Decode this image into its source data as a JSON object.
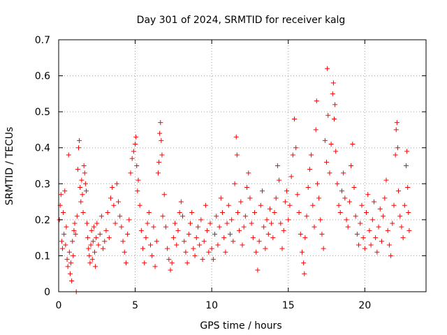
{
  "chart_data": {
    "type": "scatter",
    "title": "Day 301 of 2024, SRMTID for receiver kalg",
    "xlabel": "GPS time / hours",
    "ylabel": "SRMTID / TECUs",
    "xlim": [
      0,
      24
    ],
    "ylim": [
      0,
      0.7
    ],
    "xticks": [
      0,
      5,
      10,
      15,
      20
    ],
    "yticks": [
      0,
      0.1,
      0.2,
      0.3,
      0.4,
      0.5,
      0.6,
      0.7
    ],
    "grid": true,
    "marker": "+",
    "color": "#ff0000",
    "series": [
      {
        "name": "SRMTID",
        "points": [
          [
            0.05,
            0.2
          ],
          [
            0.1,
            0.24
          ],
          [
            0.15,
            0.27
          ],
          [
            0.2,
            0.14
          ],
          [
            0.25,
            0.12
          ],
          [
            0.3,
            0.22
          ],
          [
            0.35,
            0.16
          ],
          [
            0.4,
            0.28
          ],
          [
            0.45,
            0.13
          ],
          [
            0.5,
            0.18
          ],
          [
            0.55,
            0.09
          ],
          [
            0.6,
            0.07
          ],
          [
            0.65,
            0.38
          ],
          [
            0.7,
            0.11
          ],
          [
            0.75,
            0.05
          ],
          [
            0.8,
            0.08
          ],
          [
            0.85,
            0.03
          ],
          [
            0.9,
            0.14
          ],
          [
            0.95,
            0.1
          ],
          [
            1.0,
            0.17
          ],
          [
            1.05,
            0.19
          ],
          [
            1.1,
            0.16
          ],
          [
            1.15,
            0.0
          ],
          [
            1.2,
            0.21
          ],
          [
            1.25,
            0.34
          ],
          [
            1.3,
            0.4
          ],
          [
            1.35,
            0.42
          ],
          [
            1.4,
            0.29
          ],
          [
            1.45,
            0.25
          ],
          [
            1.5,
            0.31
          ],
          [
            1.55,
            0.27
          ],
          [
            1.6,
            0.22
          ],
          [
            1.65,
            0.35
          ],
          [
            1.7,
            0.33
          ],
          [
            1.75,
            0.3
          ],
          [
            1.8,
            0.28
          ],
          [
            1.85,
            0.19
          ],
          [
            1.9,
            0.15
          ],
          [
            1.95,
            0.12
          ],
          [
            2.0,
            0.1
          ],
          [
            2.05,
            0.08
          ],
          [
            2.1,
            0.13
          ],
          [
            2.15,
            0.17
          ],
          [
            2.2,
            0.09
          ],
          [
            2.25,
            0.14
          ],
          [
            2.3,
            0.18
          ],
          [
            2.35,
            0.11
          ],
          [
            2.4,
            0.07
          ],
          [
            2.45,
            0.15
          ],
          [
            2.5,
            0.19
          ],
          [
            2.6,
            0.13
          ],
          [
            2.7,
            0.16
          ],
          [
            2.8,
            0.21
          ],
          [
            2.9,
            0.12
          ],
          [
            3.0,
            0.14
          ],
          [
            3.1,
            0.17
          ],
          [
            3.2,
            0.22
          ],
          [
            3.3,
            0.15
          ],
          [
            3.4,
            0.26
          ],
          [
            3.5,
            0.29
          ],
          [
            3.6,
            0.24
          ],
          [
            3.7,
            0.19
          ],
          [
            3.8,
            0.3
          ],
          [
            3.9,
            0.25
          ],
          [
            4.0,
            0.21
          ],
          [
            4.1,
            0.18
          ],
          [
            4.2,
            0.14
          ],
          [
            4.3,
            0.11
          ],
          [
            4.4,
            0.08
          ],
          [
            4.5,
            0.16
          ],
          [
            4.6,
            0.2
          ],
          [
            4.7,
            0.33
          ],
          [
            4.8,
            0.37
          ],
          [
            4.9,
            0.39
          ],
          [
            5.0,
            0.41
          ],
          [
            5.05,
            0.43
          ],
          [
            5.1,
            0.35
          ],
          [
            5.15,
            0.28
          ],
          [
            5.2,
            0.31
          ],
          [
            5.3,
            0.24
          ],
          [
            5.4,
            0.17
          ],
          [
            5.5,
            0.12
          ],
          [
            5.6,
            0.08
          ],
          [
            5.7,
            0.15
          ],
          [
            5.8,
            0.19
          ],
          [
            5.9,
            0.22
          ],
          [
            6.0,
            0.13
          ],
          [
            6.1,
            0.1
          ],
          [
            6.2,
            0.18
          ],
          [
            6.3,
            0.07
          ],
          [
            6.4,
            0.14
          ],
          [
            6.5,
            0.33
          ],
          [
            6.55,
            0.36
          ],
          [
            6.6,
            0.44
          ],
          [
            6.65,
            0.47
          ],
          [
            6.7,
            0.42
          ],
          [
            6.75,
            0.38
          ],
          [
            6.8,
            0.21
          ],
          [
            6.9,
            0.27
          ],
          [
            7.0,
            0.18
          ],
          [
            7.1,
            0.12
          ],
          [
            7.2,
            0.09
          ],
          [
            7.3,
            0.06
          ],
          [
            7.4,
            0.08
          ],
          [
            7.5,
            0.15
          ],
          [
            7.6,
            0.19
          ],
          [
            7.7,
            0.13
          ],
          [
            7.8,
            0.17
          ],
          [
            7.9,
            0.22
          ],
          [
            8.0,
            0.25
          ],
          [
            8.1,
            0.21
          ],
          [
            8.2,
            0.14
          ],
          [
            8.3,
            0.11
          ],
          [
            8.4,
            0.08
          ],
          [
            8.5,
            0.16
          ],
          [
            8.6,
            0.19
          ],
          [
            8.7,
            0.22
          ],
          [
            8.8,
            0.12
          ],
          [
            8.9,
            0.1
          ],
          [
            9.0,
            0.15
          ],
          [
            9.1,
            0.18
          ],
          [
            9.2,
            0.13
          ],
          [
            9.3,
            0.2
          ],
          [
            9.4,
            0.09
          ],
          [
            9.5,
            0.14
          ],
          [
            9.6,
            0.24
          ],
          [
            9.7,
            0.17
          ],
          [
            9.8,
            0.11
          ],
          [
            9.9,
            0.19
          ],
          [
            10.0,
            0.12
          ],
          [
            10.1,
            0.09
          ],
          [
            10.2,
            0.16
          ],
          [
            10.3,
            0.21
          ],
          [
            10.4,
            0.13
          ],
          [
            10.5,
            0.18
          ],
          [
            10.6,
            0.26
          ],
          [
            10.7,
            0.22
          ],
          [
            10.8,
            0.15
          ],
          [
            10.9,
            0.11
          ],
          [
            11.0,
            0.19
          ],
          [
            11.1,
            0.24
          ],
          [
            11.2,
            0.16
          ],
          [
            11.3,
            0.2
          ],
          [
            11.4,
            0.14
          ],
          [
            11.5,
            0.3
          ],
          [
            11.6,
            0.43
          ],
          [
            11.65,
            0.38
          ],
          [
            11.7,
            0.22
          ],
          [
            11.8,
            0.17
          ],
          [
            11.9,
            0.25
          ],
          [
            12.0,
            0.13
          ],
          [
            12.1,
            0.18
          ],
          [
            12.2,
            0.21
          ],
          [
            12.3,
            0.29
          ],
          [
            12.4,
            0.33
          ],
          [
            12.5,
            0.26
          ],
          [
            12.6,
            0.19
          ],
          [
            12.7,
            0.15
          ],
          [
            12.8,
            0.22
          ],
          [
            12.9,
            0.11
          ],
          [
            13.0,
            0.06
          ],
          [
            13.1,
            0.14
          ],
          [
            13.2,
            0.24
          ],
          [
            13.3,
            0.28
          ],
          [
            13.4,
            0.18
          ],
          [
            13.5,
            0.12
          ],
          [
            13.6,
            0.2
          ],
          [
            13.7,
            0.16
          ],
          [
            13.8,
            0.23
          ],
          [
            13.9,
            0.19
          ],
          [
            14.0,
            0.15
          ],
          [
            14.1,
            0.22
          ],
          [
            14.2,
            0.26
          ],
          [
            14.3,
            0.35
          ],
          [
            14.4,
            0.31
          ],
          [
            14.5,
            0.19
          ],
          [
            14.6,
            0.12
          ],
          [
            14.7,
            0.17
          ],
          [
            14.8,
            0.25
          ],
          [
            14.9,
            0.28
          ],
          [
            15.0,
            0.2
          ],
          [
            15.1,
            0.24
          ],
          [
            15.2,
            0.32
          ],
          [
            15.3,
            0.38
          ],
          [
            15.4,
            0.48
          ],
          [
            15.5,
            0.4
          ],
          [
            15.6,
            0.27
          ],
          [
            15.7,
            0.22
          ],
          [
            15.8,
            0.16
          ],
          [
            15.9,
            0.11
          ],
          [
            16.0,
            0.08
          ],
          [
            16.05,
            0.05
          ],
          [
            16.1,
            0.15
          ],
          [
            16.2,
            0.21
          ],
          [
            16.3,
            0.29
          ],
          [
            16.4,
            0.34
          ],
          [
            16.5,
            0.38
          ],
          [
            16.6,
            0.24
          ],
          [
            16.7,
            0.18
          ],
          [
            16.8,
            0.45
          ],
          [
            16.85,
            0.53
          ],
          [
            16.9,
            0.3
          ],
          [
            17.0,
            0.26
          ],
          [
            17.1,
            0.2
          ],
          [
            17.2,
            0.16
          ],
          [
            17.3,
            0.12
          ],
          [
            17.4,
            0.42
          ],
          [
            17.5,
            0.36
          ],
          [
            17.55,
            0.62
          ],
          [
            17.6,
            0.49
          ],
          [
            17.7,
            0.33
          ],
          [
            17.8,
            0.41
          ],
          [
            17.9,
            0.55
          ],
          [
            17.95,
            0.58
          ],
          [
            18.0,
            0.48
          ],
          [
            18.05,
            0.52
          ],
          [
            18.1,
            0.39
          ],
          [
            18.2,
            0.3
          ],
          [
            18.3,
            0.24
          ],
          [
            18.4,
            0.22
          ],
          [
            18.5,
            0.28
          ],
          [
            18.6,
            0.33
          ],
          [
            18.7,
            0.26
          ],
          [
            18.8,
            0.2
          ],
          [
            18.9,
            0.18
          ],
          [
            19.0,
            0.25
          ],
          [
            19.1,
            0.35
          ],
          [
            19.2,
            0.41
          ],
          [
            19.3,
            0.29
          ],
          [
            19.4,
            0.21
          ],
          [
            19.5,
            0.16
          ],
          [
            19.6,
            0.13
          ],
          [
            19.7,
            0.19
          ],
          [
            19.8,
            0.24
          ],
          [
            19.9,
            0.15
          ],
          [
            20.0,
            0.12
          ],
          [
            20.1,
            0.22
          ],
          [
            20.2,
            0.27
          ],
          [
            20.3,
            0.17
          ],
          [
            20.4,
            0.13
          ],
          [
            20.5,
            0.2
          ],
          [
            20.6,
            0.25
          ],
          [
            20.7,
            0.15
          ],
          [
            20.8,
            0.11
          ],
          [
            20.9,
            0.18
          ],
          [
            21.0,
            0.23
          ],
          [
            21.1,
            0.14
          ],
          [
            21.2,
            0.21
          ],
          [
            21.3,
            0.26
          ],
          [
            21.4,
            0.31
          ],
          [
            21.5,
            0.17
          ],
          [
            21.6,
            0.13
          ],
          [
            21.7,
            0.1
          ],
          [
            21.8,
            0.19
          ],
          [
            21.9,
            0.24
          ],
          [
            22.0,
            0.38
          ],
          [
            22.05,
            0.45
          ],
          [
            22.1,
            0.47
          ],
          [
            22.15,
            0.4
          ],
          [
            22.2,
            0.28
          ],
          [
            22.3,
            0.21
          ],
          [
            22.4,
            0.18
          ],
          [
            22.5,
            0.15
          ],
          [
            22.6,
            0.24
          ],
          [
            22.7,
            0.35
          ],
          [
            22.75,
            0.39
          ],
          [
            22.8,
            0.29
          ],
          [
            22.85,
            0.22
          ],
          [
            22.9,
            0.17
          ]
        ]
      }
    ]
  }
}
